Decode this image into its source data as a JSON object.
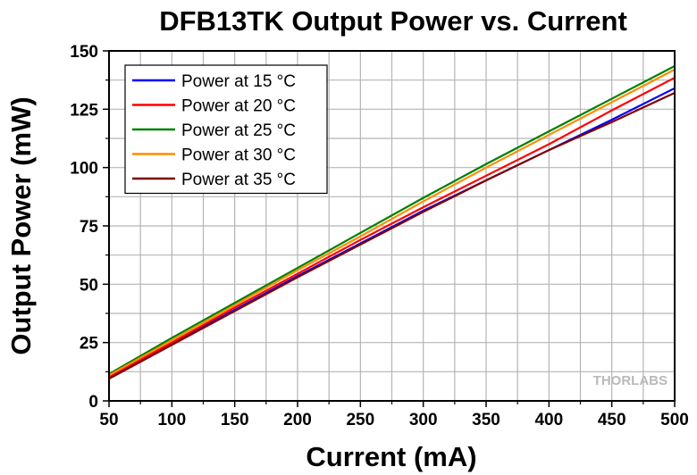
{
  "chart_data": {
    "type": "line",
    "title": "DFB13TK Output Power vs. Current",
    "xlabel": "Current (mA)",
    "ylabel": "Output Power (mW)",
    "xlim": [
      50,
      500
    ],
    "ylim": [
      0,
      150
    ],
    "xticks": [
      50,
      100,
      150,
      200,
      250,
      300,
      350,
      400,
      450,
      500
    ],
    "yticks": [
      0,
      25,
      50,
      75,
      100,
      125,
      150
    ],
    "x_minor_step": 25,
    "y_minor_step": 12.5,
    "grid": true,
    "legend_position": "top-left",
    "x": [
      50,
      100,
      150,
      200,
      250,
      300,
      350,
      400,
      450,
      500
    ],
    "series": [
      {
        "name": "Power at 15 °C",
        "color": "#0000ff",
        "values": [
          10,
          24.5,
          39,
          53.5,
          67.5,
          81.5,
          94.5,
          107.5,
          120.5,
          134
        ]
      },
      {
        "name": "Power at 20 °C",
        "color": "#ff0000",
        "values": [
          10.5,
          25,
          40,
          54.5,
          69,
          83,
          96.5,
          110,
          124.5,
          138.5
        ]
      },
      {
        "name": "Power at 25 °C",
        "color": "#008000",
        "values": [
          11.5,
          27,
          42,
          57,
          72,
          87,
          101.5,
          115.5,
          129.5,
          143.5
        ]
      },
      {
        "name": "Power at 30 °C",
        "color": "#ff8c00",
        "values": [
          11,
          26,
          41,
          56,
          70.5,
          85.5,
          100,
          114,
          128,
          142
        ]
      },
      {
        "name": "Power at 35 °C",
        "color": "#800000",
        "values": [
          9.5,
          24,
          38.5,
          53,
          67,
          81,
          94.5,
          107.5,
          119.5,
          132
        ]
      }
    ],
    "watermark": "THORLABS"
  }
}
